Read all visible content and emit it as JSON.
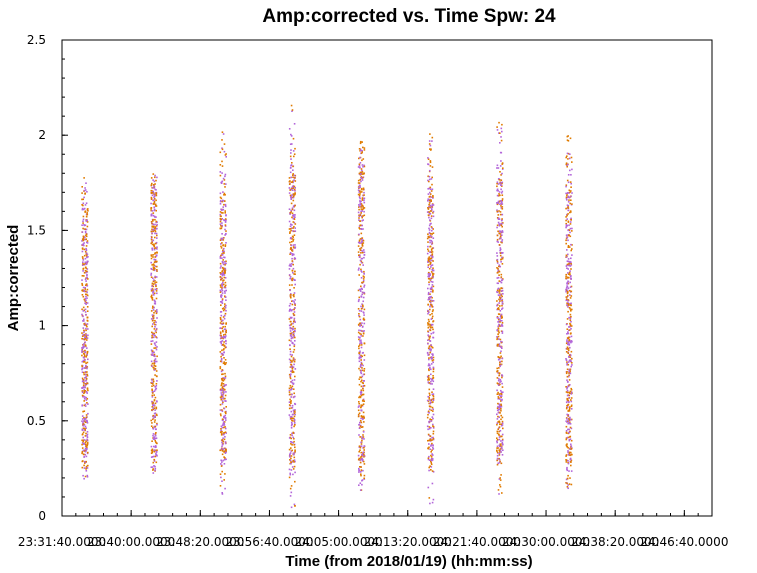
{
  "chart_data": {
    "type": "scatter",
    "title": "Amp:corrected vs. Time Spw: 24",
    "xlabel": "Time (from 2018/01/19) (hh:mm:ss)",
    "ylabel": "Amp:corrected",
    "xlim": [
      "23:31:40.0000",
      "24:50:00.0000"
    ],
    "ylim": [
      0,
      2.5
    ],
    "x_tick_labels": [
      "23:31:40.0000",
      "23:40:00.0000",
      "23:48:20.0000",
      "23:56:40.0000",
      "24:05:00.0000",
      "24:13:20.0000",
      "24:21:40.0000",
      "24:30:00.0000",
      "24:38:20.0000",
      "24:46:40.0000"
    ],
    "y_ticks": [
      0,
      0.5,
      1,
      1.5,
      2,
      2.5
    ],
    "y_tick_labels": [
      "0",
      "0.5",
      "1",
      "1.5",
      "2",
      "2.5"
    ],
    "grid": false,
    "colors": {
      "series_a": "#b366d9",
      "series_b": "#e07b00"
    },
    "scans": [
      {
        "time": "23:34:20",
        "amp_min": 0.2,
        "amp_max": 1.78,
        "dense_min": 0.35,
        "dense_max": 1.6
      },
      {
        "time": "23:42:40",
        "amp_min": 0.23,
        "amp_max": 1.8,
        "dense_min": 0.35,
        "dense_max": 1.7
      },
      {
        "time": "23:51:00",
        "amp_min": 0.12,
        "amp_max": 2.02,
        "dense_min": 0.35,
        "dense_max": 1.66
      },
      {
        "time": "23:59:20",
        "amp_min": 0.05,
        "amp_max": 2.16,
        "dense_min": 0.3,
        "dense_max": 1.78
      },
      {
        "time": "24:07:40",
        "amp_min": 0.14,
        "amp_max": 1.97,
        "dense_min": 0.3,
        "dense_max": 1.8
      },
      {
        "time": "24:16:00",
        "amp_min": 0.07,
        "amp_max": 2.01,
        "dense_min": 0.3,
        "dense_max": 1.72
      },
      {
        "time": "24:24:20",
        "amp_min": 0.12,
        "amp_max": 2.07,
        "dense_min": 0.35,
        "dense_max": 1.75
      },
      {
        "time": "24:32:40",
        "amp_min": 0.15,
        "amp_max": 2.0,
        "dense_min": 0.3,
        "dense_max": 1.7
      }
    ]
  }
}
